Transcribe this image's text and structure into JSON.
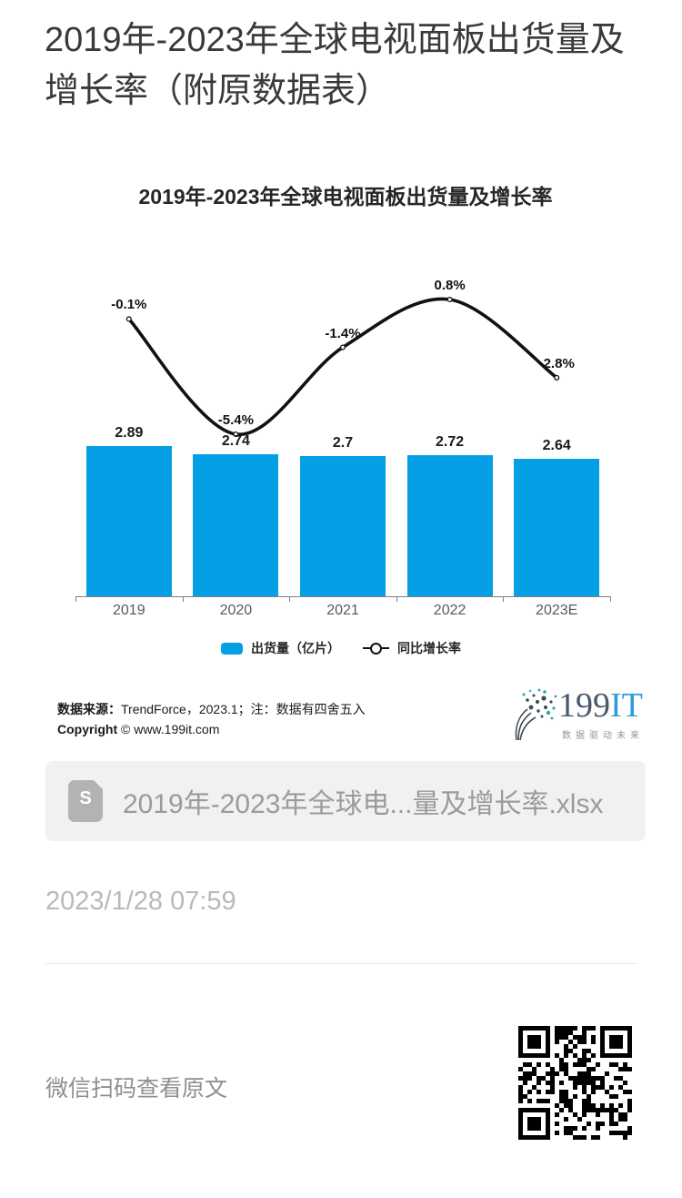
{
  "page": {
    "title": "2019年-2023年全球电视面板出货量及增长率（附原数据表）",
    "timestamp": "2023/1/28 07:59",
    "wechat_hint": "微信扫码查看原文"
  },
  "chart_data": {
    "type": "bar",
    "title": "2019年-2023年全球电视面板出货量及增长率",
    "categories": [
      "2019",
      "2020",
      "2021",
      "2022",
      "2023E"
    ],
    "series": [
      {
        "name": "出货量（亿片）",
        "type": "bar",
        "values": [
          2.89,
          2.74,
          2.7,
          2.72,
          2.64
        ],
        "labels": [
          "2.89",
          "2.74",
          "2.7",
          "2.72",
          "2.64"
        ],
        "color": "#049FE4"
      },
      {
        "name": "同比增长率",
        "type": "line",
        "values": [
          -0.1,
          -5.4,
          -1.4,
          0.8,
          -2.8
        ],
        "labels": [
          "-0.1%",
          "-5.4%",
          "-1.4%",
          "0.8%",
          "-2.8%"
        ],
        "color": "#111111"
      }
    ],
    "xlabel": "",
    "ylabel": "",
    "grid": false,
    "legend_position": "bottom",
    "axis_color": "#7f7f7f"
  },
  "source": {
    "prefix": "数据来源：",
    "text": "TrendForce，2023.1；注：数据有四舍五入",
    "copyright_prefix": "Copyright",
    "copyright_text": "© www.199it.com"
  },
  "logo": {
    "num": "199",
    "it": "IT",
    "tagline": "数据驱动未来"
  },
  "attachment": {
    "filename": "2019年-2023年全球电...量及增长率.xlsx",
    "icon_letter": "S"
  }
}
